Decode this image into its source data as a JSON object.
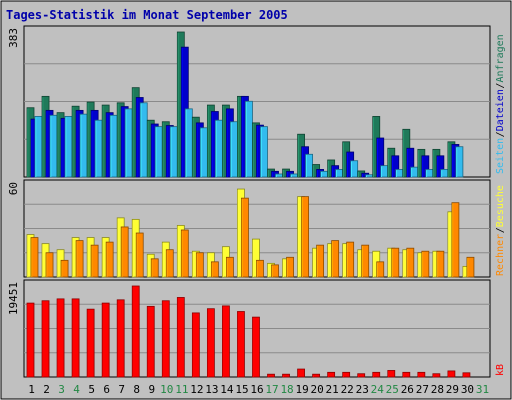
{
  "chart_data": {
    "type": "bar",
    "title": "Tages-Statistik im Monat September 2005",
    "categories": [
      "1",
      "2",
      "3",
      "4",
      "5",
      "6",
      "7",
      "8",
      "9",
      "10",
      "11",
      "12",
      "13",
      "14",
      "15",
      "16",
      "17",
      "18",
      "19",
      "20",
      "21",
      "22",
      "23",
      "24",
      "25",
      "26",
      "27",
      "28",
      "29",
      "30",
      "31"
    ],
    "weekend_days": [
      "3",
      "4",
      "10",
      "11",
      "17",
      "18",
      "24",
      "25",
      "31"
    ],
    "panels": [
      {
        "id": "top",
        "ymax_label": "383",
        "ylim": [
          0,
          383
        ],
        "series": [
          {
            "name": "Anfragen",
            "color": "#1f7a5a",
            "values": [
              183,
              213,
              170,
              187,
              198,
              190,
              196,
              236,
              150,
              146,
              383,
              158,
              190,
              190,
              213,
              143,
              21,
              21,
              113,
              33,
              45,
              93,
              16,
              160,
              76,
              126,
              73,
              73,
              93,
              0,
              0
            ]
          },
          {
            "name": "Dateien",
            "color": "#0000cc",
            "values": [
              153,
              176,
              155,
              176,
              176,
              170,
              186,
              210,
              140,
              136,
              343,
              143,
              173,
              180,
              213,
              137,
              15,
              15,
              80,
              20,
              30,
              66,
              10,
              103,
              56,
              76,
              56,
              56,
              86,
              0,
              0
            ]
          },
          {
            "name": "Seiten",
            "color": "#33bbee",
            "values": [
              160,
              163,
              160,
              166,
              150,
              163,
              180,
              196,
              133,
              133,
              180,
              130,
              150,
              146,
              200,
              133,
              8,
              8,
              60,
              15,
              20,
              43,
              6,
              30,
              20,
              26,
              20,
              20,
              80,
              0,
              0
            ]
          }
        ]
      },
      {
        "id": "middle",
        "ymax_label": "60",
        "ylim": [
          0,
          60
        ],
        "series": [
          {
            "name": "Besuche",
            "color": "#ffff33",
            "values": [
              28,
              22,
              18,
              26,
              26,
              26,
              39,
              38,
              15,
              23,
              34,
              17,
              16,
              20,
              58,
              25,
              9,
              12,
              53,
              19,
              22,
              22,
              18,
              17,
              19,
              18,
              16,
              17,
              43,
              7,
              0
            ]
          },
          {
            "name": "Rechner",
            "color": "#ff8800",
            "values": [
              26,
              16,
              11,
              24,
              21,
              23,
              33,
              29,
              12,
              18,
              31,
              16,
              10,
              13,
              52,
              11,
              8,
              13,
              53,
              21,
              24,
              23,
              21,
              10,
              19,
              19,
              17,
              17,
              49,
              13,
              0
            ]
          }
        ]
      },
      {
        "id": "bottom",
        "ymax_label": "19451",
        "ylim": [
          0,
          19451
        ],
        "series": [
          {
            "name": "kB",
            "color": "#ff0000",
            "values": [
              15800,
              16300,
              16700,
              16700,
              14500,
              15800,
              16500,
              19451,
              15100,
              16300,
              17000,
              13700,
              14600,
              15200,
              14000,
              12800,
              600,
              600,
              1700,
              600,
              1000,
              1000,
              700,
              1000,
              1400,
              1000,
              1000,
              700,
              1300,
              900,
              0
            ]
          }
        ]
      }
    ],
    "legend_placement": "right, vertical",
    "grid": true
  }
}
